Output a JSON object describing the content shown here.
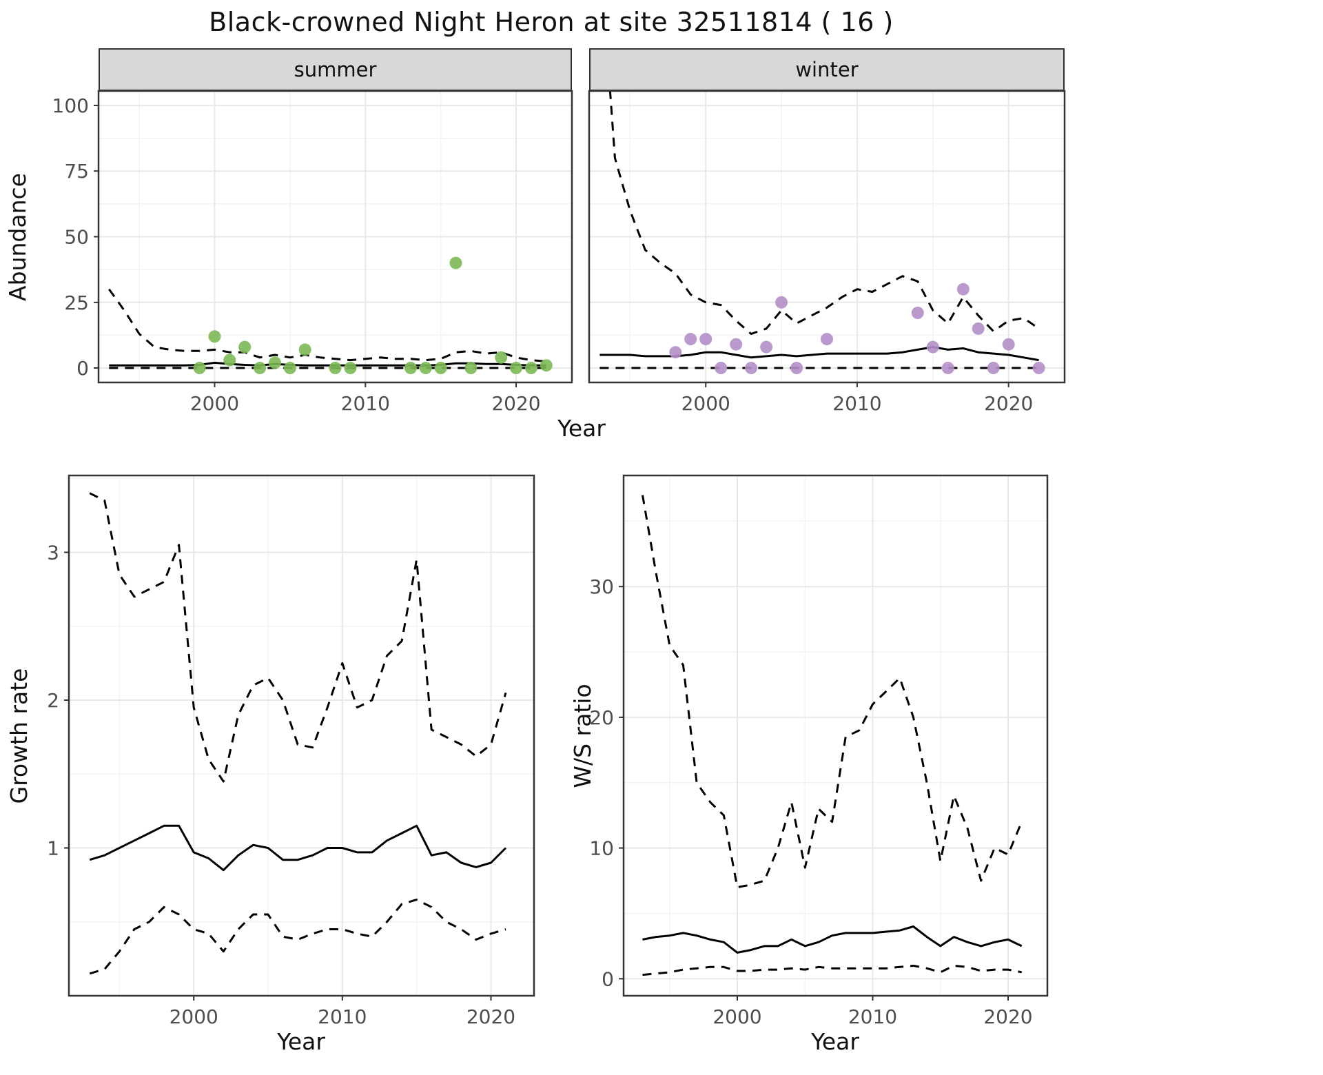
{
  "title": "Black-crowned Night Heron at site 32511814 ( 16 )",
  "labels": {
    "abundance": "Abundance",
    "year": "Year",
    "growth": "Growth rate",
    "ws": "W/S ratio"
  },
  "colors": {
    "summer_point": "#7CB854",
    "winter_point": "#B28FC6",
    "line": "#000000",
    "strip_bg": "#D8D8D8",
    "grid_major": "#E8E8E8",
    "grid_minor": "#F3F3F3",
    "panel_border": "#333333",
    "tick_text": "#4D4D4D"
  },
  "chart_data": [
    {
      "type": "line+scatter",
      "facet": "summer",
      "xlabel": "Year",
      "ylabel": "Abundance",
      "xlim": [
        1992.3,
        2023.7
      ],
      "ylim": [
        -5.5,
        105.5
      ],
      "xticks": [
        2000,
        2010,
        2020
      ],
      "yticks": [
        0,
        25,
        50,
        75,
        100
      ],
      "xminor": [
        1995,
        2005,
        2015
      ],
      "yminor": [
        12.5,
        37.5,
        62.5,
        87.5
      ],
      "line_x": [
        1993,
        1994,
        1995,
        1996,
        1997,
        1998,
        1999,
        2000,
        2001,
        2002,
        2003,
        2004,
        2005,
        2006,
        2007,
        2008,
        2009,
        2010,
        2011,
        2012,
        2013,
        2014,
        2015,
        2016,
        2017,
        2018,
        2019,
        2020,
        2021,
        2022
      ],
      "series": [
        {
          "name": "median",
          "style": "solid",
          "values": [
            1,
            1,
            1,
            1,
            1,
            1,
            1.2,
            2,
            1.5,
            1.2,
            1,
            1.5,
            1.2,
            1,
            1,
            1,
            1,
            1,
            1,
            1,
            1,
            1,
            1.2,
            1.8,
            1.8,
            1.5,
            1.5,
            1.2,
            1,
            1
          ]
        },
        {
          "name": "upper_ci",
          "style": "dashed",
          "values": [
            30,
            22,
            13,
            8,
            7,
            6.5,
            6.5,
            7,
            6,
            6,
            4,
            5,
            4,
            5,
            4,
            3.5,
            3,
            3.5,
            4,
            3.5,
            3.5,
            3,
            3.5,
            6,
            6.5,
            5.5,
            6,
            4,
            3,
            2.5
          ]
        },
        {
          "name": "lower_ci",
          "style": "dashed",
          "values": [
            0,
            0,
            0,
            0,
            0,
            0,
            0,
            0,
            0,
            0,
            0,
            0,
            0,
            0,
            0,
            0,
            0,
            0,
            0,
            0,
            0,
            0,
            0,
            0,
            0,
            0,
            0,
            0,
            0,
            0
          ]
        }
      ],
      "points": {
        "color_key": "summer_point",
        "x": [
          1999,
          2000,
          2001,
          2002,
          2003,
          2004,
          2005,
          2006,
          2008,
          2009,
          2013,
          2014,
          2015,
          2016,
          2017,
          2019,
          2020,
          2021,
          2022
        ],
        "y": [
          0,
          12,
          3,
          8,
          0,
          2,
          0,
          7,
          0,
          0,
          0,
          0,
          0,
          40,
          0,
          4,
          0,
          0,
          1
        ]
      }
    },
    {
      "type": "line+scatter",
      "facet": "winter",
      "xlabel": "Year",
      "ylabel": "Abundance",
      "xlim": [
        1992.3,
        2023.7
      ],
      "ylim": [
        -5.5,
        105.5
      ],
      "xticks": [
        2000,
        2010,
        2020
      ],
      "yticks": [
        0,
        25,
        50,
        75,
        100
      ],
      "xminor": [
        1995,
        2005,
        2015
      ],
      "yminor": [
        12.5,
        37.5,
        62.5,
        87.5
      ],
      "line_x": [
        1993,
        1994,
        1995,
        1996,
        1997,
        1998,
        1999,
        2000,
        2001,
        2002,
        2003,
        2004,
        2005,
        2006,
        2007,
        2008,
        2009,
        2010,
        2011,
        2012,
        2013,
        2014,
        2015,
        2016,
        2017,
        2018,
        2019,
        2020,
        2021,
        2022
      ],
      "series": [
        {
          "name": "median",
          "style": "solid",
          "values": [
            5,
            5,
            5,
            4.5,
            4.5,
            4.5,
            5,
            6,
            6,
            5,
            4,
            4.5,
            5,
            4.5,
            5,
            5.5,
            5.5,
            5.5,
            5.5,
            5.5,
            6,
            7,
            8,
            7,
            7.5,
            6,
            5.5,
            5,
            4,
            3
          ]
        },
        {
          "name": "upper_ci",
          "style": "dashed",
          "values": [
            160,
            80,
            60,
            45,
            40,
            36,
            28,
            25,
            24,
            18,
            13,
            15,
            22,
            17,
            20,
            23,
            27,
            30,
            29,
            32,
            35,
            33,
            22,
            17,
            27,
            20,
            14,
            18,
            19,
            15
          ]
        },
        {
          "name": "lower_ci",
          "style": "dashed",
          "values": [
            0,
            0,
            0,
            0,
            0,
            0,
            0,
            0,
            0,
            0,
            0,
            0,
            0,
            0,
            0,
            0,
            0,
            0,
            0,
            0,
            0,
            0,
            0,
            0,
            0,
            0,
            0,
            0,
            0,
            0
          ]
        }
      ],
      "points": {
        "color_key": "winter_point",
        "x": [
          1998,
          1999,
          2000,
          2001,
          2002,
          2003,
          2004,
          2005,
          2006,
          2008,
          2014,
          2015,
          2016,
          2017,
          2018,
          2019,
          2020,
          2022
        ],
        "y": [
          6,
          11,
          11,
          0,
          9,
          0,
          8,
          25,
          0,
          11,
          21,
          8,
          0,
          30,
          15,
          0,
          9,
          0
        ]
      }
    },
    {
      "type": "line",
      "facet": "",
      "xlabel": "Year",
      "ylabel": "Growth rate",
      "xlim": [
        1991.6,
        2022.9
      ],
      "ylim": [
        0,
        3.52
      ],
      "xticks": [
        2000,
        2010,
        2020
      ],
      "yticks": [
        1,
        2,
        3
      ],
      "xminor": [
        1995,
        2005,
        2015
      ],
      "yminor": [
        0.5,
        1.5,
        2.5,
        3.5
      ],
      "line_x": [
        1993,
        1994,
        1995,
        1996,
        1997,
        1998,
        1999,
        2000,
        2001,
        2002,
        2003,
        2004,
        2005,
        2006,
        2007,
        2008,
        2009,
        2010,
        2011,
        2012,
        2013,
        2014,
        2015,
        2016,
        2017,
        2018,
        2019,
        2020,
        2021
      ],
      "series": [
        {
          "name": "median",
          "style": "solid",
          "values": [
            0.92,
            0.95,
            1.0,
            1.05,
            1.1,
            1.15,
            1.15,
            0.97,
            0.93,
            0.85,
            0.95,
            1.02,
            1.0,
            0.92,
            0.92,
            0.95,
            1.0,
            1.0,
            0.97,
            0.97,
            1.05,
            1.1,
            1.15,
            0.95,
            0.97,
            0.9,
            0.87,
            0.9,
            1.0
          ]
        },
        {
          "name": "upper_ci",
          "style": "dashed",
          "values": [
            3.4,
            3.35,
            2.85,
            2.7,
            2.75,
            2.8,
            3.05,
            1.95,
            1.6,
            1.45,
            1.9,
            2.1,
            2.15,
            2.0,
            1.7,
            1.68,
            1.95,
            2.25,
            1.95,
            2.0,
            2.3,
            2.4,
            2.95,
            1.8,
            1.75,
            1.7,
            1.62,
            1.7,
            2.05
          ]
        },
        {
          "name": "lower_ci",
          "style": "dashed",
          "values": [
            0.15,
            0.18,
            0.3,
            0.45,
            0.5,
            0.6,
            0.55,
            0.45,
            0.42,
            0.3,
            0.45,
            0.55,
            0.55,
            0.4,
            0.38,
            0.42,
            0.45,
            0.45,
            0.42,
            0.4,
            0.5,
            0.62,
            0.65,
            0.6,
            0.5,
            0.45,
            0.38,
            0.42,
            0.45
          ]
        }
      ],
      "points": null
    },
    {
      "type": "line",
      "facet": "",
      "xlabel": "Year",
      "ylabel": "W/S ratio",
      "xlim": [
        1991.6,
        2022.9
      ],
      "ylim": [
        -1.3,
        38.5
      ],
      "xticks": [
        2000,
        2010,
        2020
      ],
      "yticks": [
        0,
        10,
        20,
        30
      ],
      "xminor": [
        1995,
        2005,
        2015
      ],
      "yminor": [
        5,
        15,
        25,
        35
      ],
      "line_x": [
        1993,
        1994,
        1995,
        1996,
        1997,
        1998,
        1999,
        2000,
        2001,
        2002,
        2003,
        2004,
        2005,
        2006,
        2007,
        2008,
        2009,
        2010,
        2011,
        2012,
        2013,
        2014,
        2015,
        2016,
        2017,
        2018,
        2019,
        2020,
        2021
      ],
      "series": [
        {
          "name": "median",
          "style": "solid",
          "values": [
            3.0,
            3.2,
            3.3,
            3.5,
            3.3,
            3.0,
            2.8,
            2.0,
            2.2,
            2.5,
            2.5,
            3.0,
            2.5,
            2.8,
            3.3,
            3.5,
            3.5,
            3.5,
            3.6,
            3.7,
            4.0,
            3.2,
            2.5,
            3.2,
            2.8,
            2.5,
            2.8,
            3.0,
            2.5
          ]
        },
        {
          "name": "upper_ci",
          "style": "dashed",
          "values": [
            37,
            31,
            25.5,
            24,
            15,
            13.5,
            12.5,
            7,
            7.2,
            7.5,
            10,
            13.5,
            8.5,
            13,
            12,
            18.5,
            19,
            21,
            22,
            23,
            20,
            15,
            9,
            14,
            11.5,
            7.5,
            10,
            9.5,
            12
          ]
        },
        {
          "name": "lower_ci",
          "style": "dashed",
          "values": [
            0.3,
            0.4,
            0.5,
            0.7,
            0.8,
            0.9,
            0.9,
            0.6,
            0.6,
            0.7,
            0.7,
            0.8,
            0.7,
            0.9,
            0.8,
            0.8,
            0.8,
            0.8,
            0.8,
            0.9,
            1.0,
            0.8,
            0.5,
            1.0,
            0.9,
            0.6,
            0.7,
            0.7,
            0.5
          ]
        }
      ],
      "points": null
    }
  ]
}
